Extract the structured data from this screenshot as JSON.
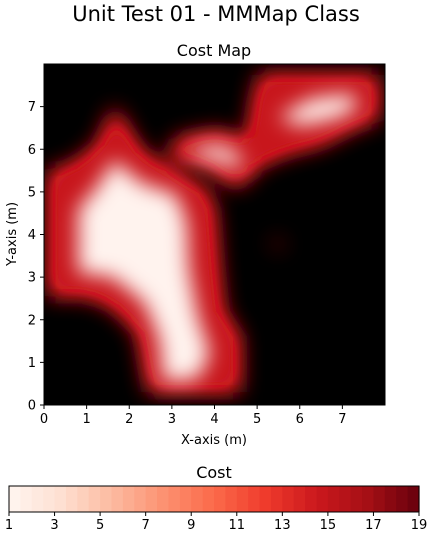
{
  "figure": {
    "suptitle": "Unit Test 01 - MMMap Class"
  },
  "chart_data": [
    {
      "type": "heatmap",
      "title": "Cost Map",
      "xlabel": "X-axis (m)",
      "ylabel": "Y-axis (m)",
      "xlim": [
        0,
        8
      ],
      "ylim": [
        0,
        8
      ],
      "xticks": [
        0,
        1,
        2,
        3,
        4,
        5,
        6,
        7
      ],
      "yticks": [
        0,
        1,
        2,
        3,
        4,
        5,
        6,
        7
      ],
      "colormap": "Reds",
      "value_range": [
        1,
        19
      ],
      "background_color": "#000000",
      "regions": [
        {
          "name": "left-top lobe",
          "polygon": [
            [
              0.1,
              2.55
            ],
            [
              1.0,
              2.55
            ],
            [
              1.6,
              2.3
            ],
            [
              2.2,
              1.7
            ],
            [
              2.45,
              0.3
            ],
            [
              4.6,
              0.3
            ],
            [
              4.6,
              1.6
            ],
            [
              4.2,
              2.2
            ],
            [
              4.1,
              3.2
            ],
            [
              4.0,
              4.6
            ],
            [
              3.8,
              5.05
            ],
            [
              3.0,
              5.5
            ],
            [
              2.3,
              5.95
            ],
            [
              1.65,
              7.0
            ],
            [
              1.25,
              6.1
            ],
            [
              0.6,
              5.6
            ],
            [
              0.1,
              5.5
            ]
          ],
          "peak_polygon": [
            [
              0.8,
              3.1
            ],
            [
              1.6,
              3.0
            ],
            [
              2.35,
              2.4
            ],
            [
              2.7,
              1.55
            ],
            [
              2.8,
              0.55
            ],
            [
              3.6,
              0.6
            ],
            [
              3.9,
              1.2
            ],
            [
              3.6,
              2.1
            ],
            [
              3.4,
              3.2
            ],
            [
              3.35,
              4.3
            ],
            [
              3.1,
              4.95
            ],
            [
              2.3,
              5.2
            ],
            [
              1.65,
              5.75
            ],
            [
              1.2,
              5.05
            ],
            [
              0.8,
              4.6
            ]
          ]
        },
        {
          "name": "connector band",
          "polygon": [
            [
              2.9,
              5.8
            ],
            [
              3.8,
              5.6
            ],
            [
              4.5,
              5.1
            ],
            [
              4.9,
              5.4
            ],
            [
              5.1,
              6.05
            ],
            [
              4.1,
              6.45
            ],
            [
              3.1,
              6.25
            ]
          ],
          "peak_polygon": [
            [
              3.4,
              5.85
            ],
            [
              4.0,
              5.75
            ],
            [
              4.5,
              5.55
            ],
            [
              4.7,
              5.75
            ],
            [
              4.2,
              6.1
            ],
            [
              3.6,
              6.05
            ]
          ]
        },
        {
          "name": "top-right lobe",
          "polygon": [
            [
              4.6,
              5.7
            ],
            [
              4.8,
              6.4
            ],
            [
              4.9,
              7.1
            ],
            [
              5.05,
              7.75
            ],
            [
              7.85,
              7.75
            ],
            [
              7.85,
              6.7
            ],
            [
              7.3,
              6.5
            ],
            [
              6.5,
              6.1
            ],
            [
              5.7,
              5.9
            ],
            [
              5.0,
              5.6
            ]
          ],
          "peak_polygon": [
            [
              5.5,
              6.75
            ],
            [
              6.3,
              7.2
            ],
            [
              7.25,
              7.3
            ],
            [
              7.35,
              6.95
            ],
            [
              6.8,
              6.7
            ],
            [
              6.0,
              6.55
            ]
          ]
        },
        {
          "name": "small speck",
          "polygon": [
            [
              5.35,
              3.85
            ],
            [
              5.55,
              3.85
            ],
            [
              5.6,
              3.7
            ],
            [
              5.42,
              3.72
            ]
          ],
          "peak_polygon": []
        }
      ]
    },
    {
      "type": "heatmap",
      "title": "Cost",
      "colorbar": true,
      "orientation": "horizontal",
      "colormap": "Reds",
      "range": [
        1,
        19
      ],
      "ticks": [
        1,
        3,
        5,
        7,
        9,
        11,
        13,
        15,
        17,
        19
      ],
      "levels": 36
    }
  ]
}
